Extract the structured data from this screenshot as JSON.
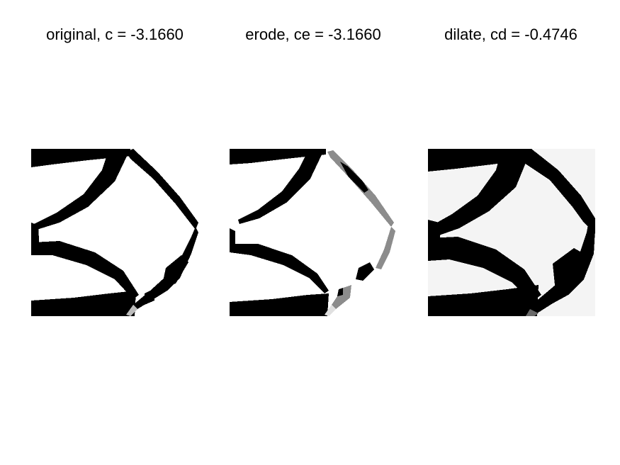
{
  "panels": [
    {
      "title": "original, c = -3.1660",
      "colors": {
        "fill": "#000000",
        "soft": "#7a7a7a",
        "faint": "#d6d6d6",
        "background": "#ffffff"
      }
    },
    {
      "title": "erode, ce = -3.1660",
      "colors": {
        "fill": "#000000",
        "soft": "#8c8c8c",
        "faint": "#e4e4e4",
        "background": "#ffffff"
      }
    },
    {
      "title": "dilate, cd = -0.4746",
      "colors": {
        "fill": "#000000",
        "soft": "#6a6a6a",
        "faint": "#f2f2f2",
        "background": "#f4f4f4"
      }
    }
  ]
}
